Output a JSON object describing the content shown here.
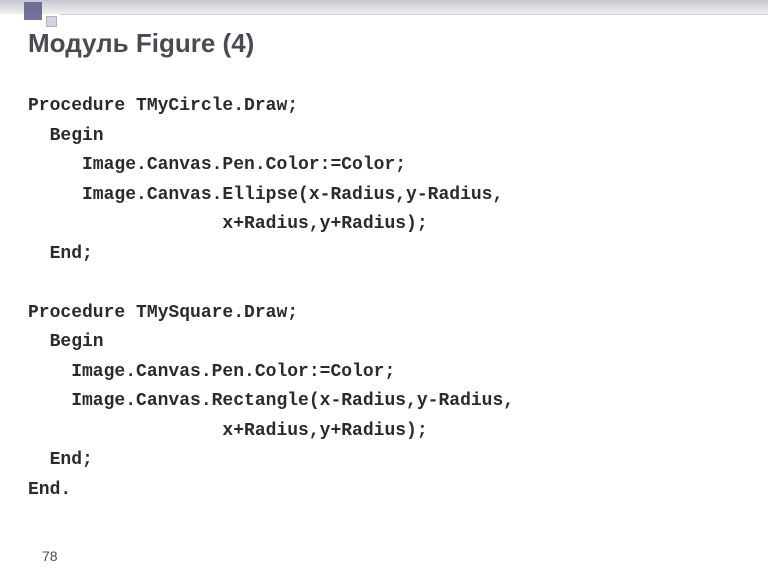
{
  "title": "Модуль Figure (4)",
  "page_number": "78",
  "code": {
    "lines": [
      "Procedure TMyCircle.Draw;",
      "  Begin",
      "     Image.Canvas.Pen.Color:=Color;",
      "     Image.Canvas.Ellipse(x-Radius,y-Radius,",
      "                  x+Radius,y+Radius);",
      "  End;",
      "",
      "Procedure TMySquare.Draw;",
      "  Begin",
      "    Image.Canvas.Pen.Color:=Color;",
      "    Image.Canvas.Rectangle(x-Radius,y-Radius,",
      "                  x+Radius,y+Radius);",
      "  End;",
      "End."
    ]
  },
  "colors": {
    "title_color": "#4a4a52",
    "code_color": "#2a2a30",
    "decoration_square_large": "#5a5a8a",
    "decoration_square_small": "#d4d4e0",
    "background": "#ffffff"
  },
  "typography": {
    "title_fontsize": 26,
    "title_weight": "bold",
    "code_fontsize": 18,
    "code_family": "Courier New",
    "code_weight": "bold",
    "pagenum_fontsize": 14
  }
}
